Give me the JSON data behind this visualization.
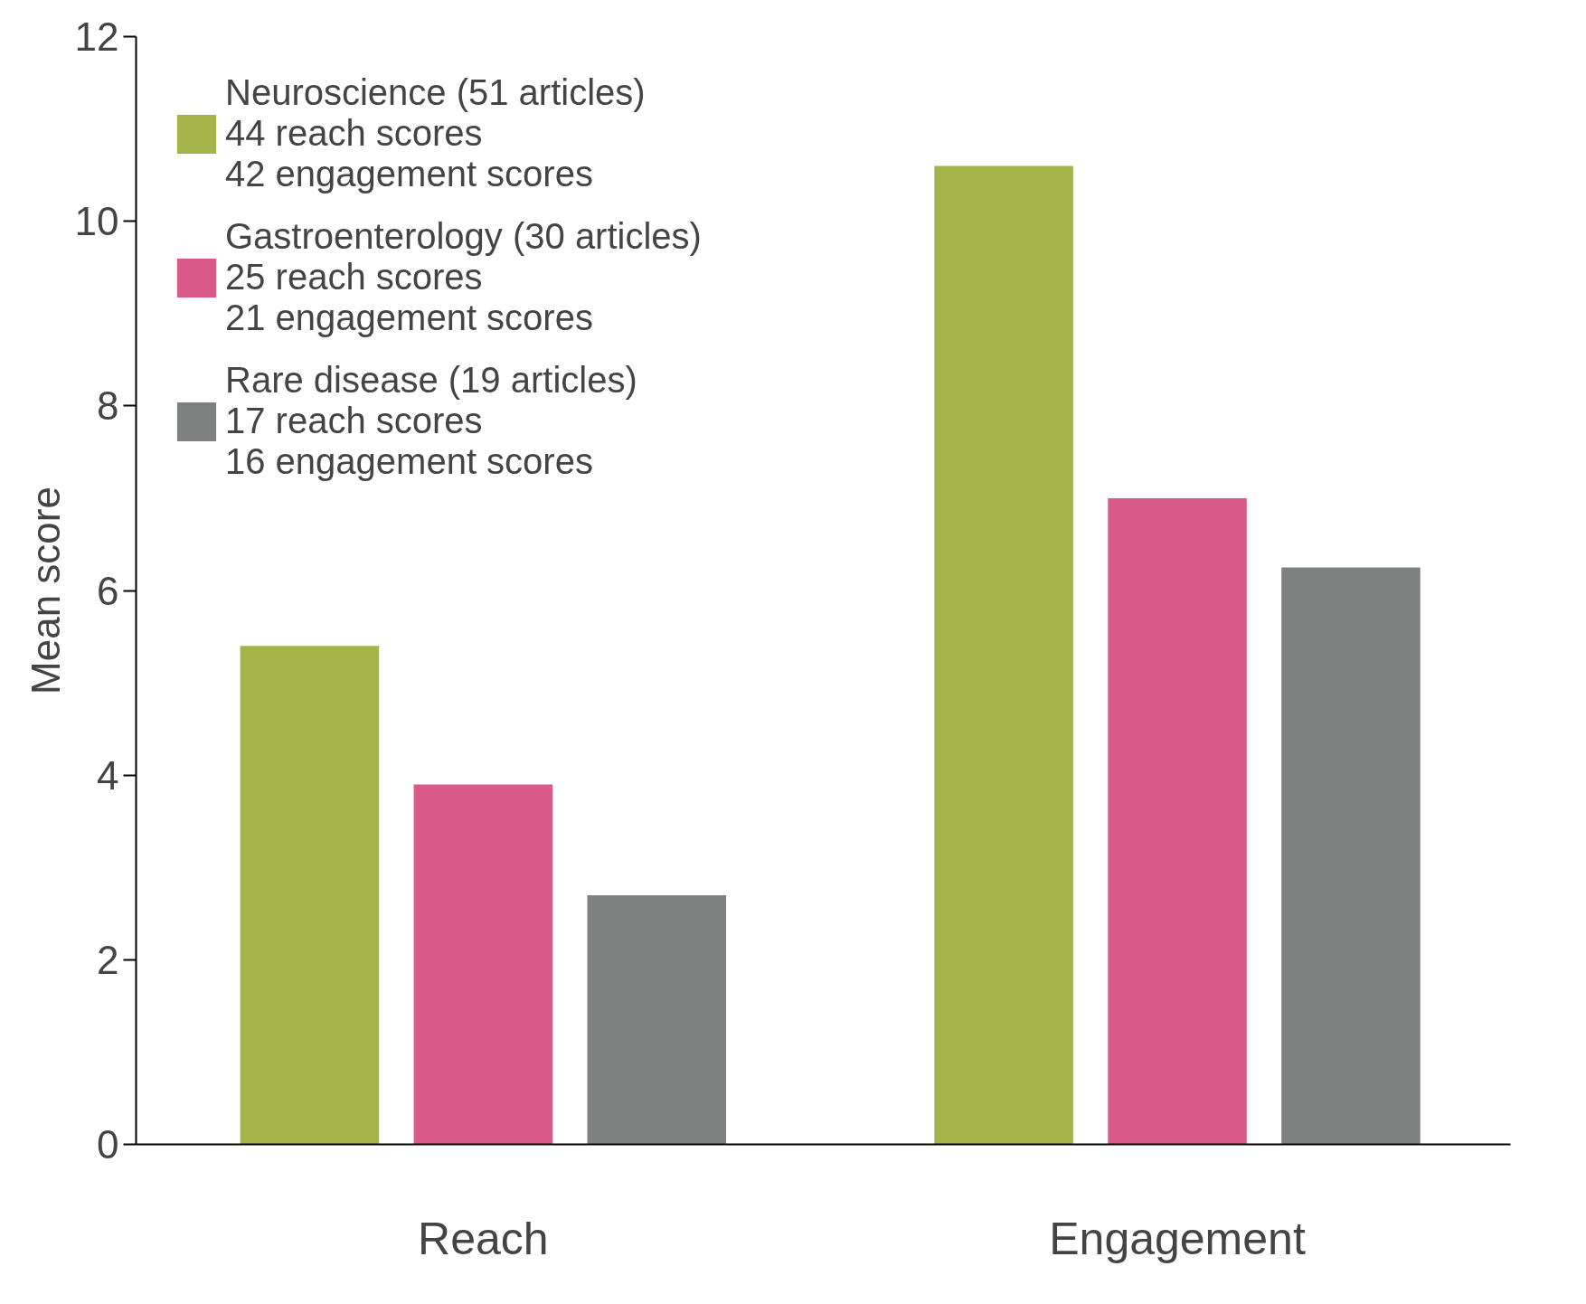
{
  "chart_data": {
    "type": "bar",
    "ylabel": "Mean score",
    "categories": [
      "Reach",
      "Engagement"
    ],
    "series": [
      {
        "name": "Neuroscience (51 articles)\n44 reach scores\n42 engagement scores",
        "color": "#a4b34a",
        "values": [
          5.4,
          10.6
        ]
      },
      {
        "name": "Gastroenterology (30 articles)\n25 reach scores\n21 engagement scores",
        "color": "#d95a88",
        "values": [
          3.9,
          7.0
        ]
      },
      {
        "name": "Rare disease (19 articles)\n17 reach scores\n16 engagement scores",
        "color": "#7f8181",
        "values": [
          2.7,
          6.25
        ]
      }
    ],
    "ylim": [
      0,
      12
    ],
    "yticks": [
      0,
      2,
      4,
      6,
      8,
      10,
      12
    ],
    "grid": false,
    "legend": "top left"
  }
}
